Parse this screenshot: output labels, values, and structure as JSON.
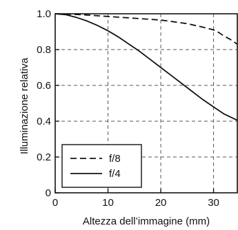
{
  "chart_data": {
    "type": "line",
    "title": "",
    "xlabel": "Altezza dell’immagine (mm)",
    "ylabel": "Illuminazione relativa",
    "xlim": [
      0,
      34.5
    ],
    "ylim": [
      0,
      1.0
    ],
    "xticks": [
      0,
      10,
      20,
      30
    ],
    "xtick_labels": [
      "0",
      "10",
      "20",
      "30"
    ],
    "yticks": [
      0,
      0.2,
      0.4,
      0.6,
      0.8,
      1.0
    ],
    "ytick_labels": [
      "0",
      "0.2",
      "0.4",
      "0.6",
      "0.8",
      "1.0"
    ],
    "grid": true,
    "legend_position": "bottom-left",
    "series": [
      {
        "name": "f/8",
        "style": "dashed",
        "x": [
          0,
          5,
          10,
          15,
          20,
          25,
          28,
          30,
          31,
          32,
          33,
          34.5
        ],
        "y": [
          1.0,
          0.995,
          0.985,
          0.975,
          0.965,
          0.945,
          0.925,
          0.91,
          0.895,
          0.875,
          0.86,
          0.83
        ]
      },
      {
        "name": "f/4",
        "style": "solid",
        "x": [
          0,
          2,
          4,
          6,
          8,
          10,
          12,
          14,
          16,
          18,
          20,
          22,
          24,
          26,
          28,
          30,
          32,
          34.5
        ],
        "y": [
          1.0,
          0.995,
          0.98,
          0.96,
          0.935,
          0.905,
          0.87,
          0.83,
          0.79,
          0.745,
          0.7,
          0.655,
          0.61,
          0.565,
          0.52,
          0.48,
          0.44,
          0.405
        ]
      }
    ]
  }
}
